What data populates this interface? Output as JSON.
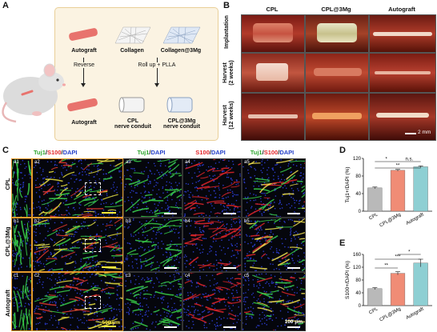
{
  "panel_letters": {
    "a": "A",
    "b": "B",
    "c": "C",
    "d": "D",
    "e": "E"
  },
  "panelA": {
    "autograft_top": "Autograft",
    "collagen": "Collagen",
    "collagen_3mg": "Collagen@3Mg",
    "reverse": "Reverse",
    "rollup": "Roll up + PLLA",
    "autograft_bottom": "Autograft",
    "cpl_conduit": "CPL\nnerve conduit",
    "cpl3mg_conduit": "CPL@3Mg\nnerve conduit",
    "colors": {
      "nerve": "#e8736d",
      "bg": "#fbf3e2"
    }
  },
  "panelB": {
    "columns": [
      "CPL",
      "CPL@3Mg",
      "Autograft"
    ],
    "rows": [
      "Implantation",
      "Harvest\n(2 weeks)",
      "Harvest\n(12 weeks)"
    ],
    "scale": "2 mm"
  },
  "panelC": {
    "header_left": {
      "tuj": "Tuj1",
      "s100": "S100",
      "dapi": "DAPI"
    },
    "col3": {
      "tuj": "Tuj1",
      "dapi": "DAPI"
    },
    "col4": {
      "s100": "S100",
      "dapi": "DAPI"
    },
    "col5": {
      "tuj": "Tuj1",
      "s100": "S100",
      "dapi": "DAPI"
    },
    "rows": [
      "CPL",
      "CPL@3Mg",
      "Autograft"
    ],
    "sublabels": [
      [
        "a1",
        "a2",
        "a3",
        "a4",
        "a5"
      ],
      [
        "b1",
        "b2",
        "b3",
        "b4",
        "b5"
      ],
      [
        "c1",
        "c2",
        "c3",
        "c4",
        "c5"
      ]
    ],
    "scale_large": "500 μm",
    "scale_small": "100 μm"
  },
  "chart_data": [
    {
      "type": "bar",
      "categories": [
        "CPL",
        "CPL@3Mg",
        "Autograft"
      ],
      "values": [
        53,
        93,
        101
      ],
      "errors": [
        2,
        2,
        2
      ],
      "ylabel": "Tuj1+/DAPI (%)",
      "ylim": [
        0,
        120
      ],
      "yticks": [
        0,
        40,
        80,
        120
      ],
      "colors": [
        "#b9b9b9",
        "#f08c76",
        "#8ecfd3"
      ],
      "sig": [
        {
          "from": 0,
          "to": 1,
          "label": "*"
        },
        {
          "from": 1,
          "to": 2,
          "label": "n.s."
        },
        {
          "from": 0,
          "to": 2,
          "label": "**"
        }
      ]
    },
    {
      "type": "bar",
      "categories": [
        "CPL",
        "CPL@3Mg",
        "Autograft"
      ],
      "values": [
        53,
        101,
        133
      ],
      "errors": [
        3,
        5,
        12
      ],
      "ylabel": "S100+/DAPI (%)",
      "ylim": [
        0,
        160
      ],
      "yticks": [
        0,
        40,
        80,
        120,
        160
      ],
      "colors": [
        "#b9b9b9",
        "#f08c76",
        "#8ecfd3"
      ],
      "sig": [
        {
          "from": 1,
          "to": 2,
          "label": "*"
        },
        {
          "from": 0,
          "to": 2,
          "label": "***"
        },
        {
          "from": 0,
          "to": 1,
          "label": "**"
        }
      ]
    }
  ]
}
